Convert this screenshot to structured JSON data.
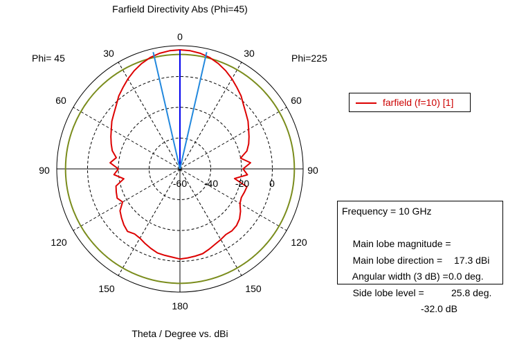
{
  "title": "Farfield Directivity Abs (Phi=45)",
  "footer": "Theta / Degree vs. dBi",
  "phi_left": "Phi= 45",
  "phi_right": "Phi=225",
  "angle_labels": {
    "top": "0",
    "upper_left": "30",
    "upper_right": "30",
    "left_60": "60",
    "right_60": "60",
    "left_90": "90",
    "right_90": "90",
    "left_120": "120",
    "right_120": "120",
    "left_150": "150",
    "right_150": "150",
    "bottom": "180"
  },
  "radial_labels": [
    "-60",
    "-40",
    "-20",
    "0"
  ],
  "legend": {
    "label": "farfield (f=10) [1]"
  },
  "info": {
    "frequency": "Frequency = 10 GHz",
    "main_lobe_magnitude_label": "Main lobe magnitude =",
    "main_lobe_magnitude_value": "17.3 dBi",
    "main_lobe_direction_label": "Main lobe direction =",
    "main_lobe_direction_value": "0.0 deg.",
    "angular_width_label": "Angular width (3 dB) =",
    "angular_width_value": "25.8 deg.",
    "side_lobe_label": "Side lobe level =",
    "side_lobe_value": "-32.0 dB"
  },
  "colors": {
    "pattern": "#dd0000",
    "three_db_ring": "#7a8c1c",
    "main_lobe": "#0000ee",
    "beamwidth_lines": "#2288dd",
    "grid": "#000000"
  },
  "chart_data": {
    "type": "polar",
    "title": "Farfield Directivity Abs (Phi=45)",
    "xlabel": "Theta / Degree vs. dBi",
    "radial_ticks": [
      -60,
      -40,
      -20,
      0
    ],
    "radial_range_dbi": [
      -60,
      20
    ],
    "angle_ticks_deg": [
      0,
      30,
      60,
      90,
      120,
      150,
      180
    ],
    "series": [
      {
        "name": "farfield (f=10) [1]",
        "theta_deg": [
          0,
          5,
          10,
          15,
          20,
          25,
          30,
          35,
          40,
          45,
          50,
          55,
          60,
          65,
          70,
          75,
          80,
          85,
          90,
          95,
          100,
          105,
          110,
          115,
          120,
          125,
          130,
          135,
          140,
          145,
          150,
          155,
          160,
          165,
          170,
          175,
          180
        ],
        "right_dbi": [
          17.3,
          17.0,
          16.2,
          14.8,
          12.8,
          10.3,
          7.5,
          4.5,
          1.8,
          -1.5,
          -4.0,
          -6.0,
          -8.5,
          -10.5,
          -12.5,
          -15.0,
          -20.0,
          -14.0,
          -19.0,
          -16.0,
          -24.0,
          -15.0,
          -15.5,
          -16.0,
          -15.0,
          -12.0,
          -9.5,
          -8.0,
          -7.5,
          -8.0,
          -7.0,
          -6.0,
          -4.5,
          -3.0,
          -2.5,
          -2.0,
          -1.5
        ],
        "left_dbi": [
          17.3,
          17.0,
          16.2,
          14.8,
          12.8,
          10.3,
          7.5,
          4.5,
          1.8,
          -1.5,
          -4.0,
          -6.0,
          -8.5,
          -10.5,
          -12.5,
          -14.5,
          -18.0,
          -14.5,
          -20.0,
          -17.0,
          -23.0,
          -17.0,
          -16.0,
          -15.0,
          -17.0,
          -12.5,
          -10.5,
          -8.5,
          -7.0,
          -8.5,
          -8.0,
          -6.5,
          -5.0,
          -3.5,
          -3.0,
          -2.5,
          -1.5
        ]
      }
    ],
    "three_db_ring_dbi": 14.3,
    "main_lobe_direction_deg": 0,
    "beamwidth_deg": 25.8
  }
}
